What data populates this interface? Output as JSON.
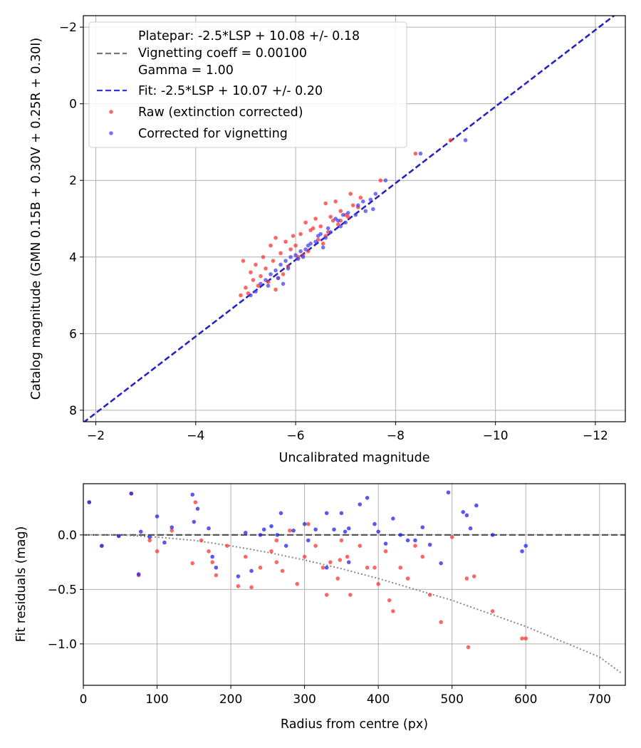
{
  "chart_data": [
    {
      "type": "scatter",
      "title": "",
      "xlabel": "Uncalibrated magnitude",
      "ylabel": "Catalog magnitude (GMN 0.15B + 0.30V + 0.25R + 0.30I)",
      "xlim": [
        -1.75,
        -12.6
      ],
      "ylim": [
        8.3,
        -2.3
      ],
      "x_inverted": true,
      "y_inverted": true,
      "xticks": [
        -2,
        -4,
        -6,
        -8,
        -10,
        -12
      ],
      "xtick_labels": [
        "−2",
        "−4",
        "−6",
        "−8",
        "−10",
        "−12"
      ],
      "yticks": [
        -2,
        0,
        2,
        4,
        6,
        8
      ],
      "ytick_labels": [
        "−2",
        "0",
        "2",
        "4",
        "6",
        "8"
      ],
      "grid": true,
      "legend_placement": "top-left",
      "legend": [
        {
          "label": "Platepar: -2.5*LSP + 10.08 +/- 0.18",
          "style": "none",
          "color": "#ffffff"
        },
        {
          "label": "Vignetting coeff = 0.00100",
          "style": "dashed",
          "color": "#777777"
        },
        {
          "label": "Gamma = 1.00",
          "style": "none",
          "color": "#ffffff"
        },
        {
          "label": "Fit: -2.5*LSP + 10.07 +/- 0.20",
          "style": "dashed",
          "color": "#3333dd"
        },
        {
          "label": "Raw (extinction corrected)",
          "style": "dot",
          "color": "#ff3333"
        },
        {
          "label": "Corrected for vignetting",
          "style": "dot",
          "color": "#4444ee"
        }
      ],
      "lines": [
        {
          "name": "Platepar",
          "slope": 1,
          "intercept": 10.08,
          "color": "#777777",
          "style": "dashed"
        },
        {
          "name": "Fit",
          "slope": 1,
          "intercept": 10.07,
          "color": "#2222cc",
          "style": "dashed"
        }
      ],
      "series": [
        {
          "name": "Raw (extinction corrected)",
          "color": "#ff3333",
          "points": [
            [
              -9.1,
              0.95
            ],
            [
              -8.4,
              1.3
            ],
            [
              -7.7,
              2.0
            ],
            [
              -7.3,
              2.45
            ],
            [
              -7.1,
              2.35
            ],
            [
              -7.0,
              2.9
            ],
            [
              -6.9,
              2.8
            ],
            [
              -6.8,
              2.55
            ],
            [
              -6.7,
              2.95
            ],
            [
              -6.6,
              2.6
            ],
            [
              -6.5,
              3.2
            ],
            [
              -6.4,
              3.0
            ],
            [
              -6.3,
              3.3
            ],
            [
              -6.2,
              3.1
            ],
            [
              -6.1,
              3.4
            ],
            [
              -6.0,
              3.7
            ],
            [
              -5.95,
              3.45
            ],
            [
              -5.9,
              3.8
            ],
            [
              -5.8,
              3.6
            ],
            [
              -5.7,
              3.9
            ],
            [
              -5.6,
              3.5
            ],
            [
              -5.55,
              4.1
            ],
            [
              -5.5,
              3.7
            ],
            [
              -5.4,
              4.3
            ],
            [
              -5.35,
              4.0
            ],
            [
              -5.3,
              4.5
            ],
            [
              -5.2,
              4.2
            ],
            [
              -5.15,
              4.6
            ],
            [
              -5.1,
              4.4
            ],
            [
              -5.0,
              4.8
            ],
            [
              -4.95,
              4.1
            ],
            [
              -4.9,
              5.0
            ],
            [
              -5.25,
              4.75
            ],
            [
              -5.45,
              4.65
            ],
            [
              -5.65,
              4.55
            ],
            [
              -5.85,
              4.25
            ],
            [
              -6.05,
              4.0
            ],
            [
              -6.25,
              3.85
            ],
            [
              -6.45,
              3.55
            ],
            [
              -6.65,
              3.35
            ],
            [
              -6.85,
              3.15
            ],
            [
              -7.05,
              2.95
            ],
            [
              -7.25,
              2.7
            ],
            [
              -6.75,
              3.05
            ],
            [
              -6.55,
              3.65
            ],
            [
              -6.35,
              3.25
            ],
            [
              -6.15,
              3.95
            ],
            [
              -5.75,
              4.45
            ],
            [
              -5.6,
              4.85
            ],
            [
              -5.05,
              4.95
            ],
            [
              -6.9,
              3.05
            ],
            [
              -7.15,
              2.65
            ],
            [
              -6.6,
              3.45
            ]
          ]
        },
        {
          "name": "Corrected for vignetting",
          "color": "#4444ee",
          "points": [
            [
              -9.4,
              0.95
            ],
            [
              -8.5,
              1.3
            ],
            [
              -7.8,
              2.0
            ],
            [
              -7.5,
              2.5
            ],
            [
              -7.4,
              2.8
            ],
            [
              -7.2,
              2.9
            ],
            [
              -7.0,
              3.1
            ],
            [
              -6.9,
              3.2
            ],
            [
              -6.8,
              3.0
            ],
            [
              -6.7,
              3.35
            ],
            [
              -6.6,
              3.5
            ],
            [
              -6.5,
              3.4
            ],
            [
              -6.4,
              3.6
            ],
            [
              -6.3,
              3.65
            ],
            [
              -6.2,
              3.8
            ],
            [
              -6.1,
              3.85
            ],
            [
              -6.0,
              3.95
            ],
            [
              -5.9,
              4.0
            ],
            [
              -5.8,
              4.1
            ],
            [
              -5.7,
              4.2
            ],
            [
              -5.6,
              4.35
            ],
            [
              -5.5,
              4.45
            ],
            [
              -5.4,
              4.6
            ],
            [
              -5.3,
              4.7
            ],
            [
              -5.2,
              4.9
            ],
            [
              -5.1,
              5.0
            ],
            [
              -5.45,
              4.75
            ],
            [
              -5.65,
              4.55
            ],
            [
              -5.85,
              4.3
            ],
            [
              -6.05,
              4.05
            ],
            [
              -6.25,
              3.7
            ],
            [
              -6.45,
              3.45
            ],
            [
              -6.65,
              3.25
            ],
            [
              -6.85,
              3.05
            ],
            [
              -7.05,
              2.85
            ],
            [
              -7.25,
              2.65
            ],
            [
              -7.6,
              2.35
            ],
            [
              -6.55,
              3.75
            ],
            [
              -6.15,
              4.0
            ],
            [
              -5.75,
              4.7
            ],
            [
              -6.95,
              2.9
            ],
            [
              -7.35,
              2.55
            ],
            [
              -7.55,
              2.75
            ]
          ]
        }
      ]
    },
    {
      "type": "scatter",
      "title": "",
      "xlabel": "Radius from centre (px)",
      "ylabel": "Fit residuals (mag)",
      "xlim": [
        0,
        735
      ],
      "ylim": [
        -1.38,
        0.47
      ],
      "xticks": [
        0,
        100,
        200,
        300,
        400,
        500,
        600,
        700
      ],
      "xtick_labels": [
        "0",
        "100",
        "200",
        "300",
        "400",
        "500",
        "600",
        "700"
      ],
      "yticks": [
        -1.0,
        -0.5,
        0.0
      ],
      "ytick_labels": [
        "−1.0",
        "−0.5",
        "0.0"
      ],
      "grid": true,
      "hline": {
        "y": 0.0,
        "color": "#555555",
        "style": "dashed"
      },
      "curve": {
        "name": "Vignetting model",
        "color": "#888888",
        "style": "dotted",
        "x": [
          0,
          50,
          100,
          150,
          200,
          250,
          300,
          350,
          400,
          450,
          500,
          550,
          600,
          650,
          700,
          730
        ],
        "y": [
          0.0,
          0.0,
          -0.02,
          -0.05,
          -0.1,
          -0.16,
          -0.23,
          -0.31,
          -0.4,
          -0.5,
          -0.6,
          -0.72,
          -0.84,
          -0.98,
          -1.12,
          -1.27
        ]
      },
      "series": [
        {
          "name": "Raw (extinction corrected)",
          "color": "#ff3333",
          "points": [
            [
              8,
              0.3
            ],
            [
              25,
              -0.1
            ],
            [
              48,
              -0.01
            ],
            [
              65,
              0.38
            ],
            [
              75,
              -0.37
            ],
            [
              90,
              -0.05
            ],
            [
              100,
              -0.15
            ],
            [
              120,
              0.04
            ],
            [
              148,
              -0.26
            ],
            [
              152,
              0.3
            ],
            [
              160,
              -0.05
            ],
            [
              170,
              -0.15
            ],
            [
              175,
              -0.25
            ],
            [
              180,
              -0.37
            ],
            [
              195,
              -0.1
            ],
            [
              210,
              -0.47
            ],
            [
              220,
              -0.2
            ],
            [
              228,
              -0.48
            ],
            [
              240,
              -0.3
            ],
            [
              255,
              -0.15
            ],
            [
              262,
              -0.25
            ],
            [
              270,
              -0.33
            ],
            [
              280,
              0.04
            ],
            [
              290,
              -0.45
            ],
            [
              300,
              -0.2
            ],
            [
              305,
              0.1
            ],
            [
              315,
              -0.1
            ],
            [
              325,
              -0.3
            ],
            [
              330,
              -0.55
            ],
            [
              335,
              -0.25
            ],
            [
              345,
              -0.4
            ],
            [
              350,
              -0.05
            ],
            [
              358,
              -0.2
            ],
            [
              362,
              -0.55
            ],
            [
              375,
              -0.1
            ],
            [
              385,
              -0.3
            ],
            [
              395,
              -0.3
            ],
            [
              400,
              -0.45
            ],
            [
              410,
              -0.15
            ],
            [
              415,
              -0.6
            ],
            [
              420,
              -0.7
            ],
            [
              430,
              -0.3
            ],
            [
              440,
              -0.4
            ],
            [
              450,
              -0.1
            ],
            [
              460,
              -0.2
            ],
            [
              470,
              -0.55
            ],
            [
              485,
              -0.8
            ],
            [
              500,
              -0.02
            ],
            [
              520,
              -0.4
            ],
            [
              522,
              -1.03
            ],
            [
              530,
              -0.38
            ],
            [
              555,
              -0.7
            ],
            [
              595,
              -0.95
            ],
            [
              600,
              -0.95
            ],
            [
              262,
              -0.05
            ],
            [
              348,
              -0.23
            ]
          ]
        },
        {
          "name": "Corrected for vignetting",
          "color": "#2222ee",
          "points": [
            [
              8,
              0.3
            ],
            [
              25,
              -0.1
            ],
            [
              48,
              -0.01
            ],
            [
              65,
              0.38
            ],
            [
              75,
              -0.36
            ],
            [
              78,
              0.03
            ],
            [
              90,
              -0.02
            ],
            [
              100,
              0.17
            ],
            [
              110,
              -0.07
            ],
            [
              120,
              0.07
            ],
            [
              148,
              0.37
            ],
            [
              150,
              0.12
            ],
            [
              155,
              0.24
            ],
            [
              170,
              0.06
            ],
            [
              175,
              -0.2
            ],
            [
              180,
              -0.3
            ],
            [
              210,
              -0.38
            ],
            [
              220,
              0.02
            ],
            [
              228,
              -0.33
            ],
            [
              240,
              0.0
            ],
            [
              255,
              0.08
            ],
            [
              268,
              0.2
            ],
            [
              275,
              -0.1
            ],
            [
              285,
              0.04
            ],
            [
              300,
              0.1
            ],
            [
              305,
              -0.05
            ],
            [
              315,
              0.05
            ],
            [
              330,
              0.2
            ],
            [
              340,
              0.05
            ],
            [
              350,
              0.2
            ],
            [
              355,
              0.03
            ],
            [
              360,
              0.06
            ],
            [
              375,
              0.28
            ],
            [
              385,
              0.34
            ],
            [
              395,
              0.1
            ],
            [
              400,
              0.03
            ],
            [
              410,
              -0.08
            ],
            [
              420,
              0.15
            ],
            [
              430,
              0.0
            ],
            [
              440,
              -0.05
            ],
            [
              450,
              -0.05
            ],
            [
              460,
              0.07
            ],
            [
              470,
              -0.09
            ],
            [
              485,
              -0.26
            ],
            [
              495,
              0.39
            ],
            [
              515,
              0.21
            ],
            [
              520,
              0.18
            ],
            [
              525,
              0.06
            ],
            [
              533,
              0.27
            ],
            [
              555,
              0.0
            ],
            [
              595,
              -0.15
            ],
            [
              600,
              -0.1
            ],
            [
              263,
              0.0
            ],
            [
              245,
              0.05
            ],
            [
              330,
              -0.3
            ],
            [
              360,
              -0.25
            ]
          ]
        }
      ]
    }
  ]
}
